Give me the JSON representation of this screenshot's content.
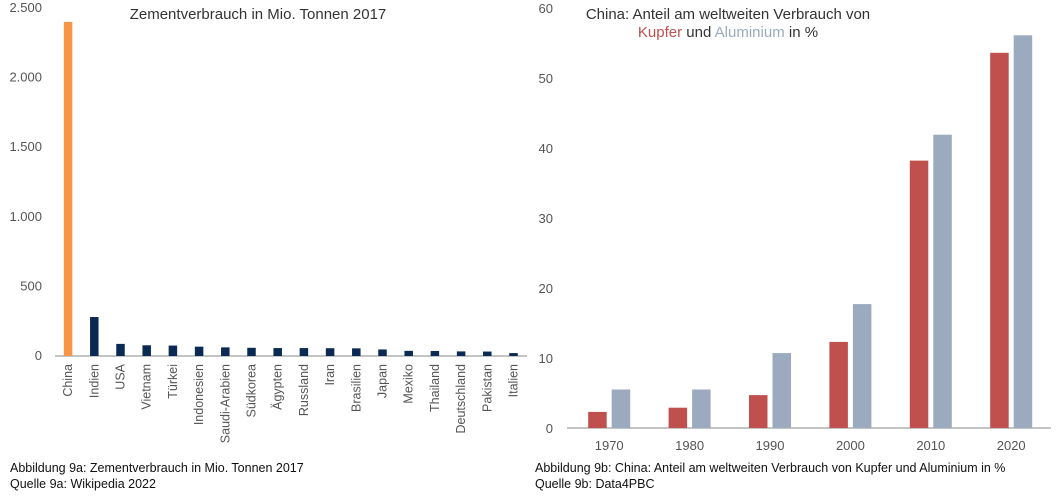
{
  "chart_data": [
    {
      "type": "bar",
      "title": "Zementverbrauch in Mio. Tonnen 2017",
      "xlabel": "",
      "ylabel": "",
      "ylim": [
        0,
        2500
      ],
      "yticks": [
        0,
        500,
        1000,
        1500,
        2000,
        2500
      ],
      "ytick_labels": [
        "0",
        "500",
        "1.000",
        "1.500",
        "2.000",
        "2.500"
      ],
      "categories": [
        "China",
        "Indien",
        "USA",
        "Vietnam",
        "Türkei",
        "Indonesien",
        "Saudi-Arabien",
        "Südkorea",
        "Ägypten",
        "Russland",
        "Iran",
        "Brasilien",
        "Japan",
        "Mexiko",
        "Thailand",
        "Deutschland",
        "Pakistan",
        "Italien"
      ],
      "values": [
        2400,
        280,
        87,
        77,
        75,
        67,
        62,
        59,
        57,
        57,
        56,
        55,
        47,
        37,
        36,
        33,
        32,
        21
      ],
      "colors": {
        "highlight": "#F79646",
        "default": "#0A2A54",
        "axis": "#888888",
        "tick_text": "#555555"
      },
      "grid": false
    },
    {
      "type": "bar",
      "title_parts": {
        "line1": "China: Anteil am weltweiten Verbrauch von",
        "kupfer": "Kupfer",
        "und": " und ",
        "aluminium": "Aluminium",
        "suffix": " in %"
      },
      "xlabel": "",
      "ylabel": "",
      "ylim": [
        0,
        60
      ],
      "yticks": [
        0,
        10,
        20,
        30,
        40,
        50,
        60
      ],
      "categories": [
        "1970",
        "1980",
        "1990",
        "2000",
        "2010",
        "2020"
      ],
      "series": [
        {
          "name": "Kupfer",
          "values": [
            2.3,
            2.9,
            4.7,
            12.3,
            38.2,
            53.6
          ],
          "color": "#C0504D"
        },
        {
          "name": "Aluminium",
          "values": [
            5.5,
            5.5,
            10.7,
            17.7,
            41.9,
            56.1
          ],
          "color": "#9BAABF"
        }
      ],
      "grid": false
    }
  ],
  "captions": {
    "a_line1": "Abbildung 9a: Zementverbrauch in Mio. Tonnen 2017",
    "a_line2": "Quelle 9a: Wikipedia 2022",
    "b_line1": "Abbildung 9b: China: Anteil am weltweiten Verbrauch von Kupfer und Aluminium in %",
    "b_line2": "Quelle 9b: Data4PBC"
  }
}
